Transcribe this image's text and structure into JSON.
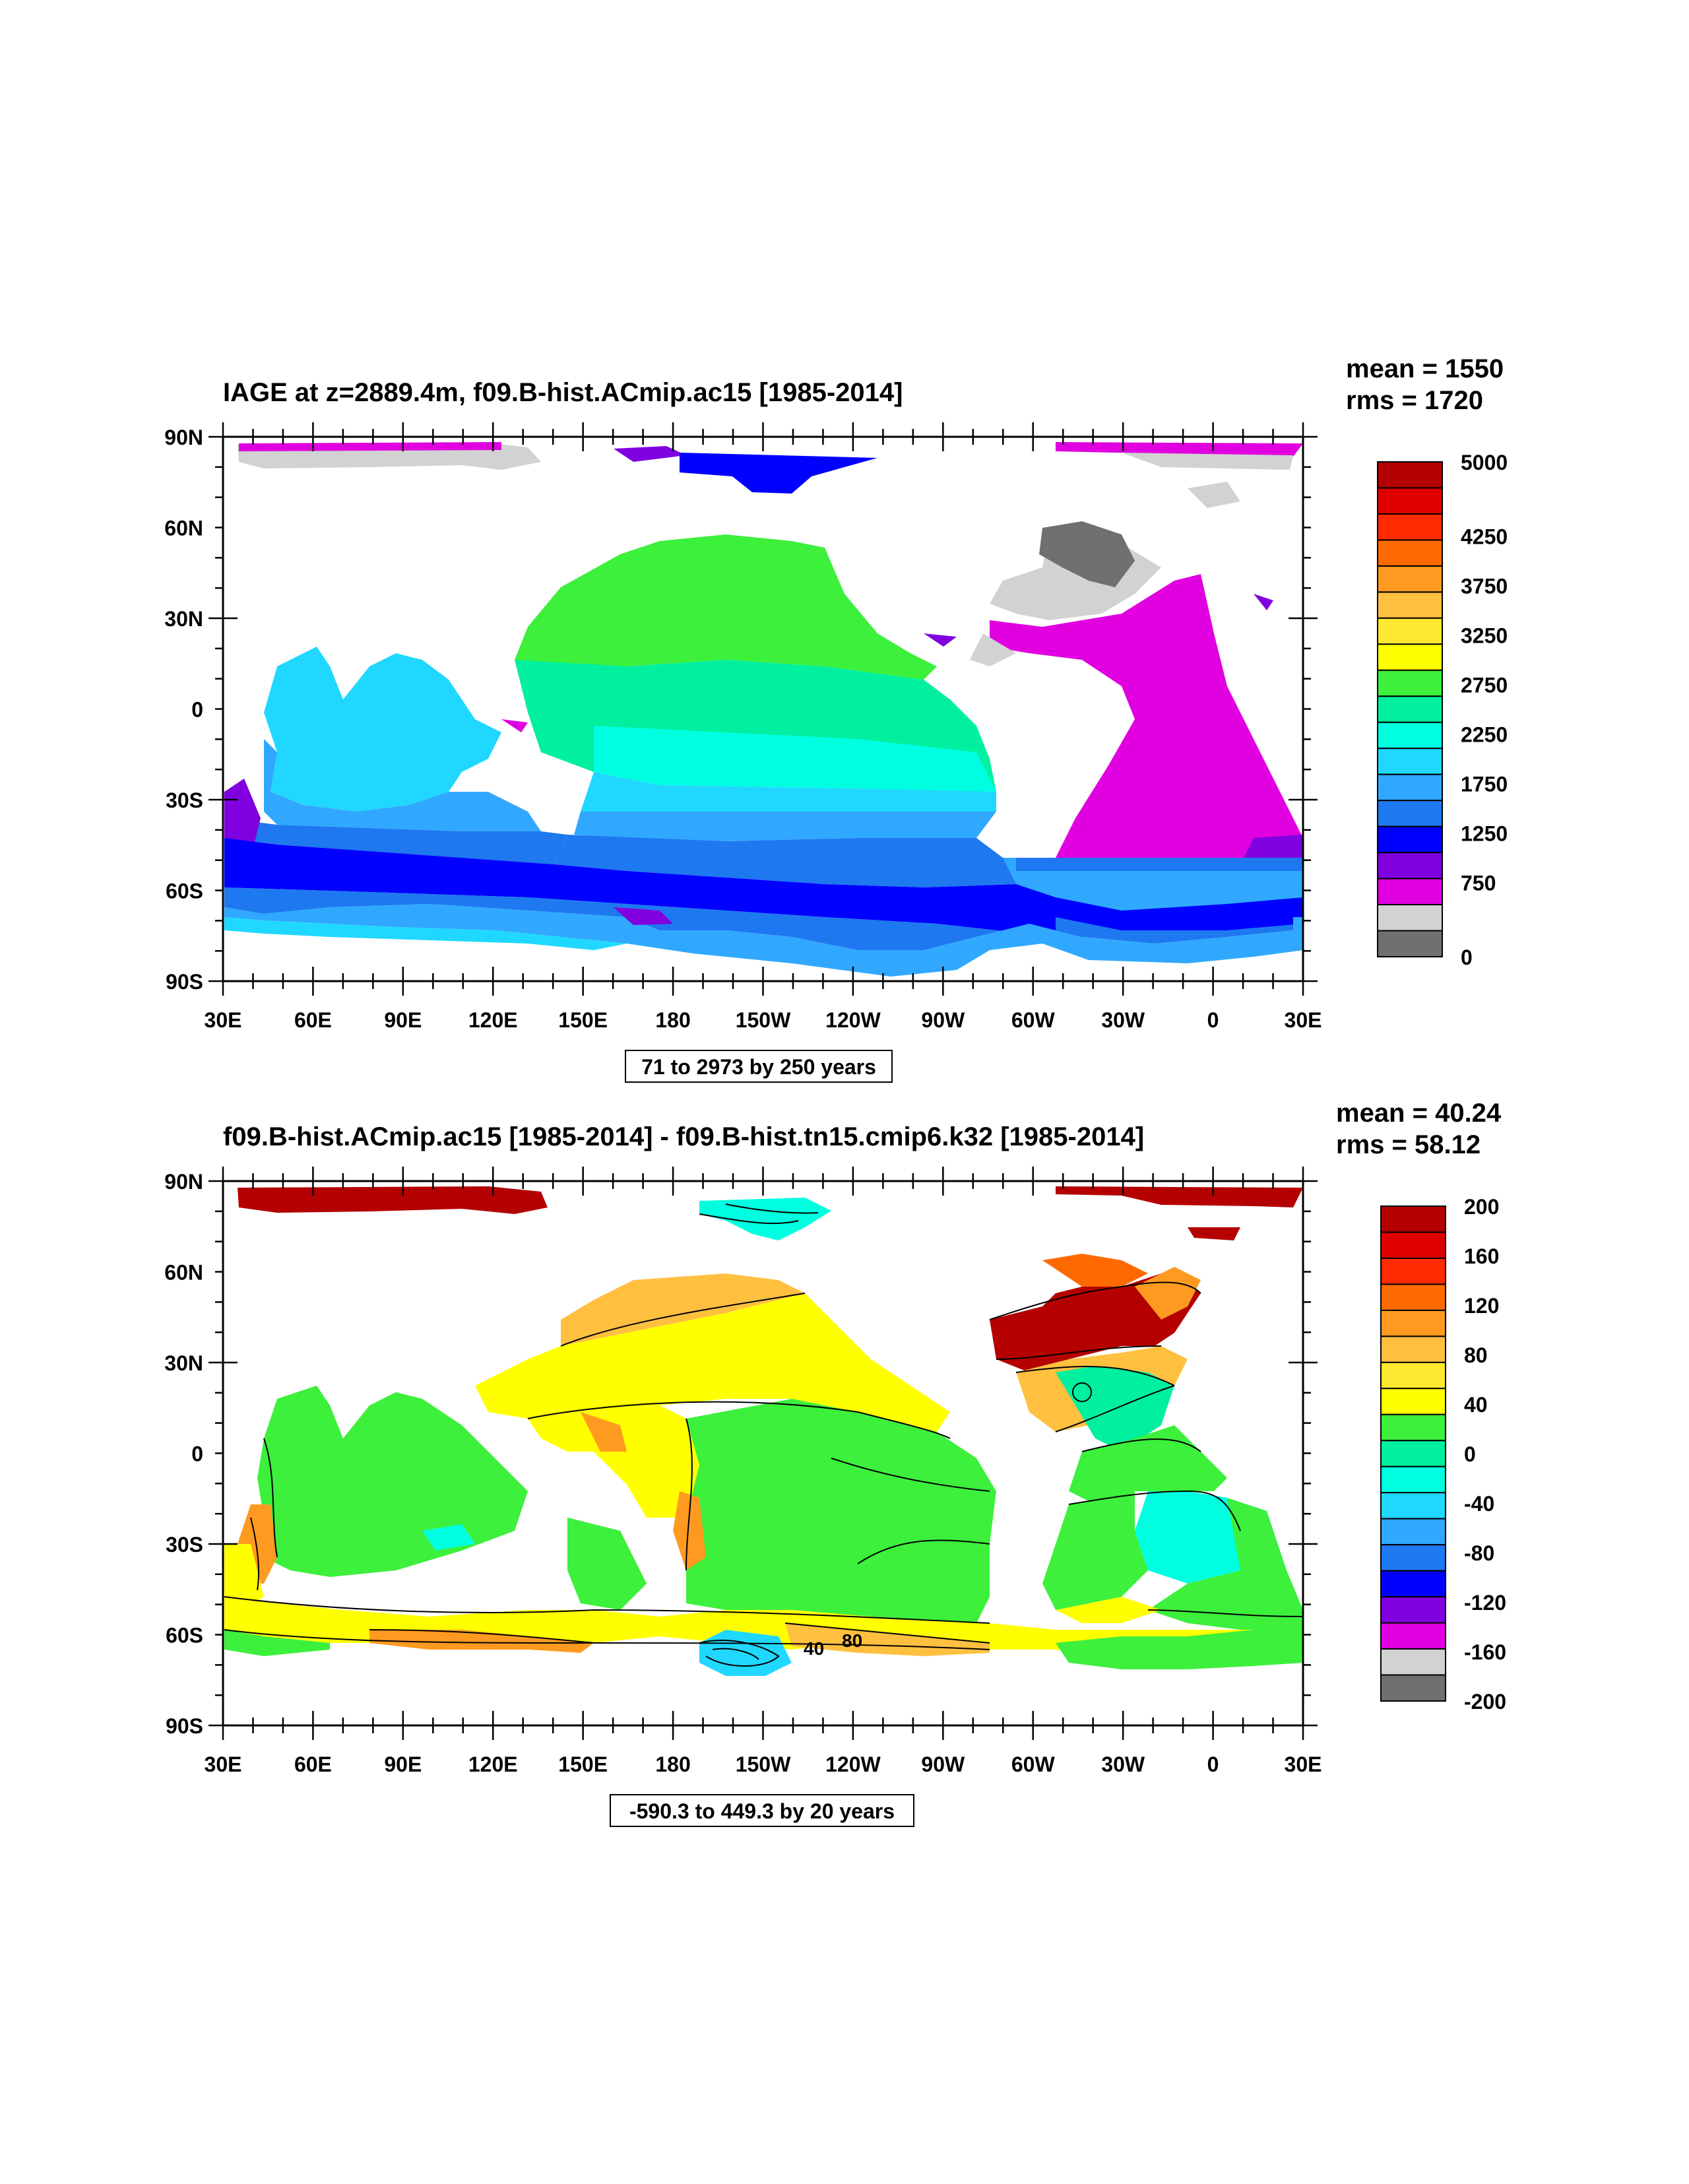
{
  "panels": [
    {
      "id": "top",
      "title": "IAGE at z=2889.4m, f09.B-hist.ACmip.ac15 [1985-2014]",
      "mean": "mean = 1550",
      "rms": "rms = 1720",
      "contour_info": "71 to 2973 by 250 years",
      "colorbar": {
        "colors": [
          "#b40000",
          "#e00000",
          "#ff2a00",
          "#ff6a00",
          "#ff9a20",
          "#ffc040",
          "#ffe830",
          "#ffff00",
          "#3cf03c",
          "#00f0a0",
          "#00ffe0",
          "#20d8ff",
          "#30a8ff",
          "#1e78f0",
          "#0000ff",
          "#8000e0",
          "#e000e0",
          "#d2d2d2",
          "#707070"
        ],
        "labels": [
          {
            "text": "5000",
            "index": 0
          },
          {
            "text": "4250",
            "index": 3
          },
          {
            "text": "3750",
            "index": 5
          },
          {
            "text": "3250",
            "index": 7
          },
          {
            "text": "2750",
            "index": 9
          },
          {
            "text": "2250",
            "index": 11
          },
          {
            "text": "1750",
            "index": 13
          },
          {
            "text": "1250",
            "index": 15
          },
          {
            "text": "750",
            "index": 17
          },
          {
            "text": "0",
            "index": 20
          }
        ]
      }
    },
    {
      "id": "bottom",
      "title": "f09.B-hist.ACmip.ac15 [1985-2014] - f09.B-hist.tn15.cmip6.k32 [1985-2014]",
      "mean": "mean = 40.24",
      "rms": "rms = 58.12",
      "contour_info": "-590.3 to 449.3 by 20 years",
      "inline_labels": [
        "40",
        "80"
      ],
      "colorbar": {
        "colors": [
          "#b40000",
          "#e00000",
          "#ff2a00",
          "#ff6a00",
          "#ff9a20",
          "#ffc040",
          "#ffe830",
          "#ffff00",
          "#3cf03c",
          "#00f0a0",
          "#00ffe0",
          "#20d8ff",
          "#30a8ff",
          "#1e78f0",
          "#0000ff",
          "#8000e0",
          "#e000e0",
          "#d2d2d2",
          "#707070"
        ],
        "labels": [
          {
            "text": "200",
            "index": 0
          },
          {
            "text": "160",
            "index": 2
          },
          {
            "text": "120",
            "index": 4
          },
          {
            "text": "80",
            "index": 6
          },
          {
            "text": "40",
            "index": 8
          },
          {
            "text": "0",
            "index": 10
          },
          {
            "text": "-40",
            "index": 12
          },
          {
            "text": "-80",
            "index": 14
          },
          {
            "text": "-120",
            "index": 16
          },
          {
            "text": "-160",
            "index": 18
          },
          {
            "text": "-200",
            "index": 20
          }
        ]
      }
    }
  ],
  "axes": {
    "lat_labels": [
      "90N",
      "60N",
      "30N",
      "0",
      "30S",
      "60S",
      "90S"
    ],
    "lon_labels": [
      "30E",
      "60E",
      "90E",
      "120E",
      "150E",
      "180",
      "150W",
      "120W",
      "90W",
      "60W",
      "30W",
      "0",
      "30E"
    ]
  }
}
